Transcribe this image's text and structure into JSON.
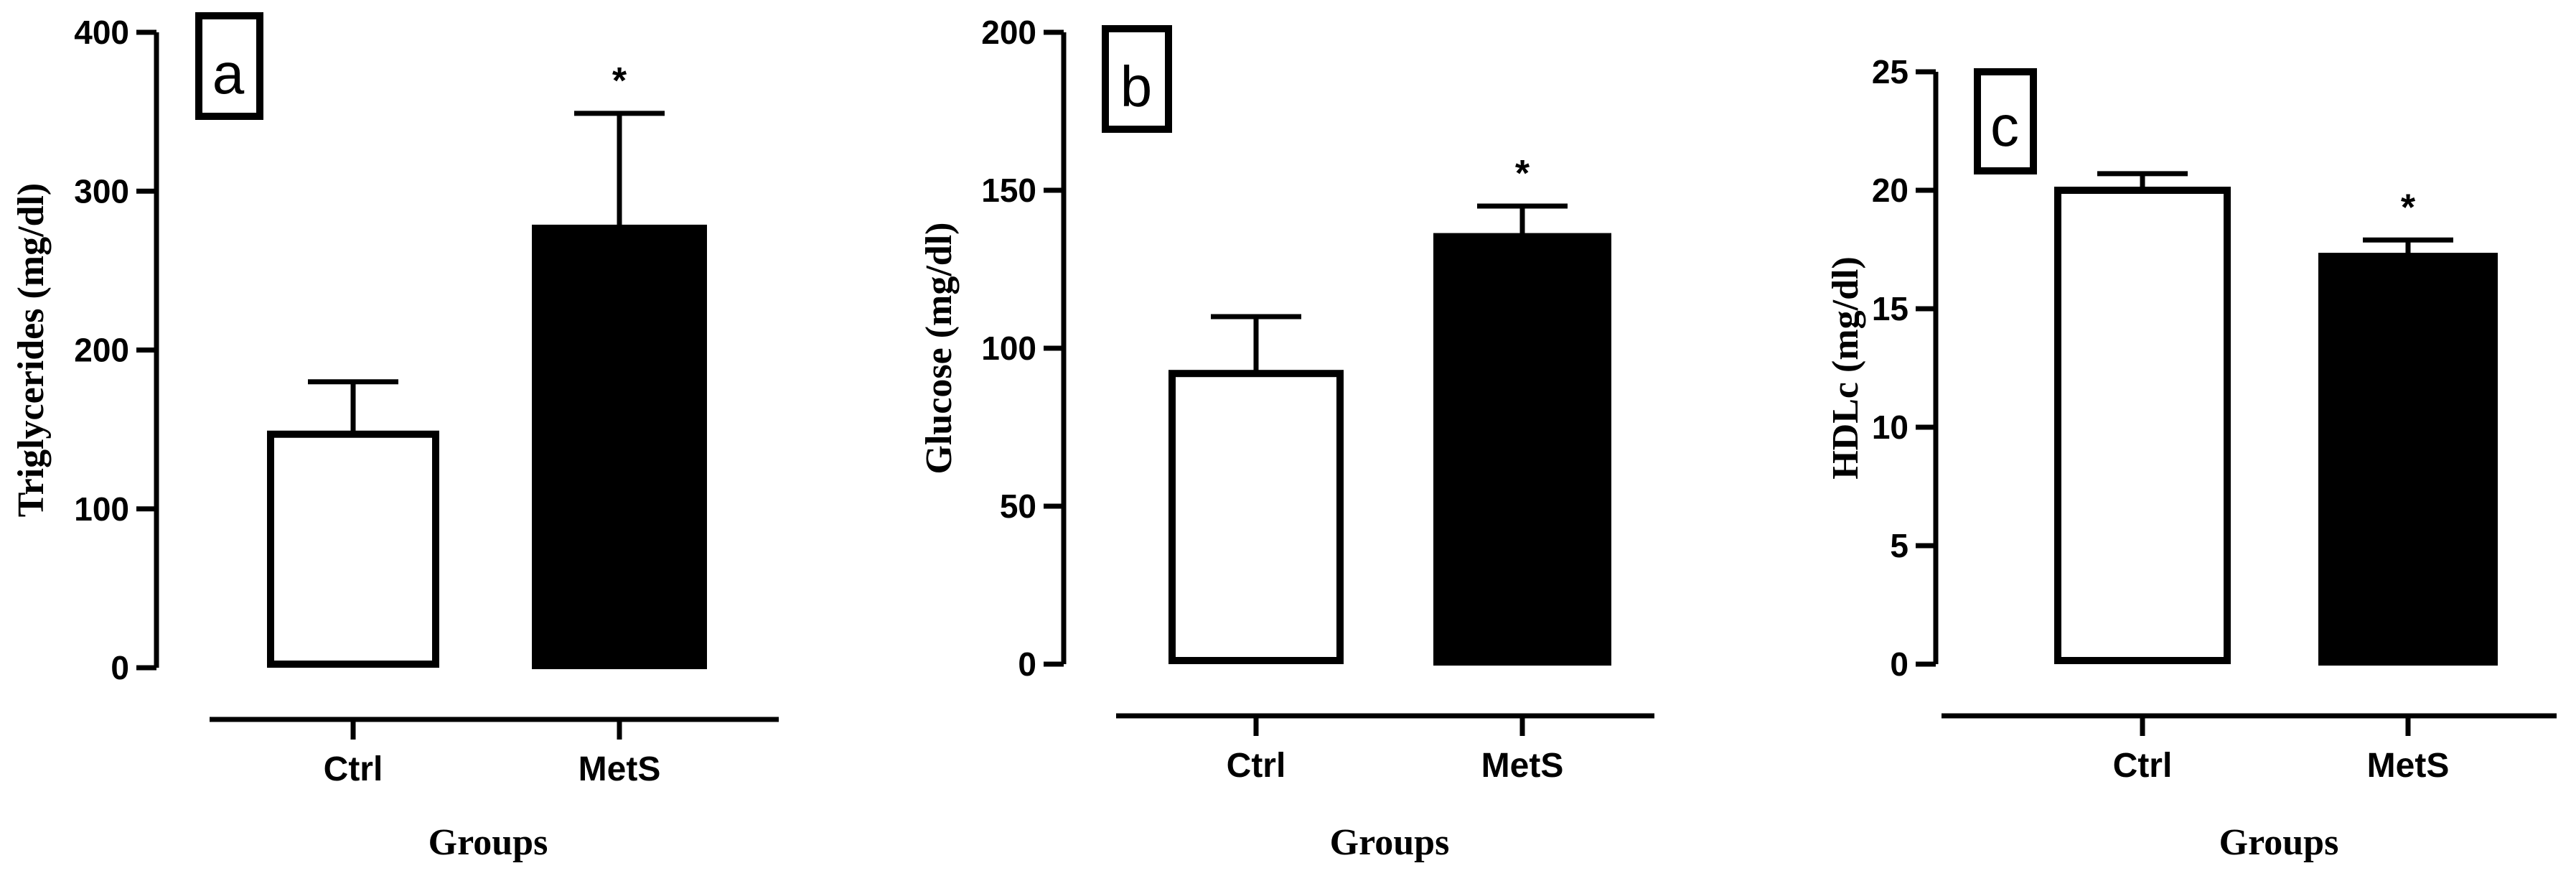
{
  "chart_data": [
    {
      "type": "bar",
      "panel": "a",
      "categories": [
        "Ctrl",
        "MetS"
      ],
      "values": [
        147,
        278
      ],
      "errors": [
        33,
        71
      ],
      "significance": [
        "",
        "*"
      ],
      "fills": [
        "#ffffff",
        "#000000"
      ],
      "ylabel": "Triglycerides (mg/dl)",
      "xlabel": "Groups",
      "ylim": [
        0,
        400
      ],
      "yticks": [
        0,
        100,
        200,
        300,
        400
      ],
      "grid": false
    },
    {
      "type": "bar",
      "panel": "b",
      "categories": [
        "Ctrl",
        "MetS"
      ],
      "values": [
        92,
        136
      ],
      "errors": [
        18,
        9
      ],
      "significance": [
        "",
        "*"
      ],
      "fills": [
        "#ffffff",
        "#000000"
      ],
      "ylabel": "Glucose (mg/dl)",
      "xlabel": "Groups",
      "ylim": [
        0,
        200
      ],
      "yticks": [
        0,
        50,
        100,
        150,
        200
      ],
      "grid": false
    },
    {
      "type": "bar",
      "panel": "c",
      "categories": [
        "Ctrl",
        "MetS"
      ],
      "values": [
        20.0,
        17.3
      ],
      "errors": [
        0.7,
        0.6
      ],
      "significance": [
        "",
        "*"
      ],
      "fills": [
        "#ffffff",
        "#000000"
      ],
      "ylabel": "HDLc (mg/dl)",
      "xlabel": "Groups",
      "ylim": [
        0,
        25
      ],
      "yticks": [
        0,
        5,
        10,
        15,
        20,
        25
      ],
      "grid": false
    }
  ]
}
